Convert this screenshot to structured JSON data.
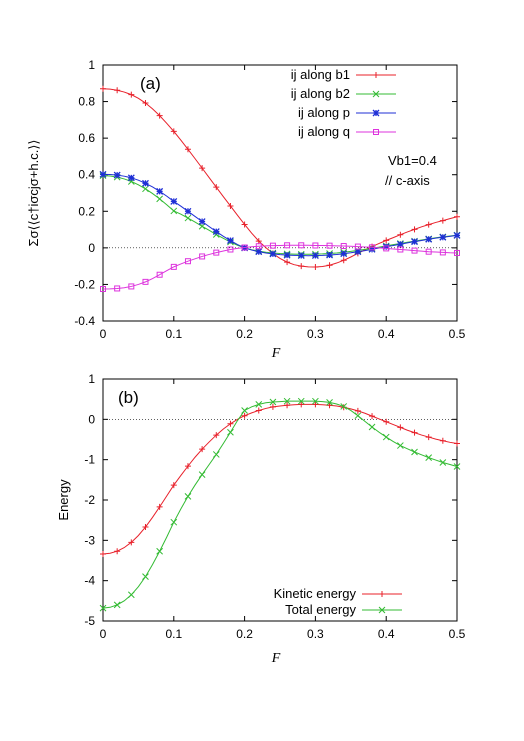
{
  "chart_data": [
    {
      "type": "line",
      "panel_label": "(a)",
      "xlabel": "F",
      "ylabel": "Σσ⟨⟨c†iσcjσ+h.c.⟩⟩",
      "xlim": [
        0,
        0.5
      ],
      "ylim": [
        -0.4,
        1
      ],
      "xticks": [
        "0",
        "0.1",
        "0.2",
        "0.3",
        "0.4",
        "0.5"
      ],
      "yticks": [
        "-0.4",
        "-0.2",
        "0",
        "0.2",
        "0.4",
        "0.6",
        "0.8",
        "1"
      ],
      "zero_line": true,
      "legend_position": "top-right",
      "annotation_line1": "Vb1=0.4",
      "annotation_line2": "// c-axis",
      "series": [
        {
          "name": "ij along b1",
          "color": "#e8202a",
          "marker": "plus",
          "x": [
            0,
            0.01,
            0.02,
            0.03,
            0.04,
            0.05,
            0.06,
            0.07,
            0.08,
            0.09,
            0.1,
            0.11,
            0.12,
            0.13,
            0.14,
            0.15,
            0.16,
            0.17,
            0.18,
            0.19,
            0.2,
            0.21,
            0.22,
            0.23,
            0.24,
            0.25,
            0.26,
            0.27,
            0.28,
            0.29,
            0.3,
            0.31,
            0.32,
            0.33,
            0.34,
            0.35,
            0.36,
            0.37,
            0.38,
            0.39,
            0.4,
            0.41,
            0.42,
            0.43,
            0.44,
            0.45,
            0.46,
            0.47,
            0.48,
            0.49,
            0.5
          ],
          "y": [
            0.87,
            0.868,
            0.862,
            0.852,
            0.838,
            0.818,
            0.792,
            0.76,
            0.723,
            0.681,
            0.637,
            0.589,
            0.539,
            0.488,
            0.436,
            0.384,
            0.332,
            0.28,
            0.229,
            0.178,
            0.128,
            0.08,
            0.037,
            0.001,
            -0.031,
            -0.058,
            -0.078,
            -0.092,
            -0.1,
            -0.104,
            -0.105,
            -0.102,
            -0.095,
            -0.083,
            -0.068,
            -0.05,
            -0.03,
            -0.011,
            0.007,
            0.024,
            0.041,
            0.056,
            0.072,
            0.087,
            0.101,
            0.115,
            0.127,
            0.139,
            0.149,
            0.16,
            0.17
          ]
        },
        {
          "name": "ij along b2",
          "color": "#33bb33",
          "marker": "cross",
          "x": [
            0,
            0.01,
            0.02,
            0.03,
            0.04,
            0.05,
            0.06,
            0.07,
            0.08,
            0.09,
            0.1,
            0.11,
            0.12,
            0.13,
            0.14,
            0.15,
            0.16,
            0.17,
            0.18,
            0.19,
            0.2,
            0.21,
            0.22,
            0.23,
            0.24,
            0.25,
            0.26,
            0.27,
            0.28,
            0.29,
            0.3,
            0.31,
            0.32,
            0.33,
            0.34,
            0.35,
            0.36,
            0.37,
            0.38,
            0.39,
            0.4,
            0.41,
            0.42,
            0.43,
            0.44,
            0.45,
            0.46,
            0.47,
            0.48,
            0.49,
            0.5
          ],
          "y": [
            0.395,
            0.393,
            0.387,
            0.377,
            0.363,
            0.345,
            0.323,
            0.297,
            0.268,
            0.236,
            0.202,
            0.184,
            0.163,
            0.141,
            0.118,
            0.096,
            0.073,
            0.052,
            0.032,
            0.014,
            0.0,
            -0.01,
            -0.018,
            -0.024,
            -0.028,
            -0.031,
            -0.033,
            -0.034,
            -0.035,
            -0.035,
            -0.034,
            -0.033,
            -0.031,
            -0.028,
            -0.024,
            -0.019,
            -0.014,
            -0.008,
            -0.002,
            0.004,
            0.011,
            0.018,
            0.024,
            0.031,
            0.037,
            0.043,
            0.049,
            0.055,
            0.06,
            0.065,
            0.07
          ]
        },
        {
          "name": "ij along p",
          "color": "#1f2fd6",
          "marker": "star",
          "x": [
            0,
            0.01,
            0.02,
            0.03,
            0.04,
            0.05,
            0.06,
            0.07,
            0.08,
            0.09,
            0.1,
            0.11,
            0.12,
            0.13,
            0.14,
            0.15,
            0.16,
            0.17,
            0.18,
            0.19,
            0.2,
            0.21,
            0.22,
            0.23,
            0.24,
            0.25,
            0.26,
            0.27,
            0.28,
            0.29,
            0.3,
            0.31,
            0.32,
            0.33,
            0.34,
            0.35,
            0.36,
            0.37,
            0.38,
            0.39,
            0.4,
            0.41,
            0.42,
            0.43,
            0.44,
            0.45,
            0.46,
            0.47,
            0.48,
            0.49,
            0.5
          ],
          "y": [
            0.402,
            0.401,
            0.398,
            0.392,
            0.383,
            0.37,
            0.353,
            0.333,
            0.309,
            0.283,
            0.254,
            0.228,
            0.2,
            0.172,
            0.144,
            0.116,
            0.089,
            0.063,
            0.04,
            0.018,
            0.0,
            -0.012,
            -0.021,
            -0.028,
            -0.033,
            -0.037,
            -0.04,
            -0.041,
            -0.042,
            -0.043,
            -0.042,
            -0.041,
            -0.039,
            -0.036,
            -0.032,
            -0.027,
            -0.021,
            -0.015,
            -0.008,
            -0.001,
            0.006,
            0.013,
            0.02,
            0.027,
            0.034,
            0.04,
            0.047,
            0.053,
            0.058,
            0.063,
            0.068
          ]
        },
        {
          "name": "ij along q",
          "color": "#dd33dd",
          "marker": "square",
          "x": [
            0,
            0.01,
            0.02,
            0.03,
            0.04,
            0.05,
            0.06,
            0.07,
            0.08,
            0.09,
            0.1,
            0.11,
            0.12,
            0.13,
            0.14,
            0.15,
            0.16,
            0.17,
            0.18,
            0.19,
            0.2,
            0.21,
            0.22,
            0.23,
            0.24,
            0.25,
            0.26,
            0.27,
            0.28,
            0.29,
            0.3,
            0.31,
            0.32,
            0.33,
            0.34,
            0.35,
            0.36,
            0.37,
            0.38,
            0.39,
            0.4,
            0.41,
            0.42,
            0.43,
            0.44,
            0.45,
            0.46,
            0.47,
            0.48,
            0.49,
            0.5
          ],
          "y": [
            -0.225,
            -0.224,
            -0.222,
            -0.218,
            -0.211,
            -0.2,
            -0.186,
            -0.168,
            -0.147,
            -0.125,
            -0.104,
            -0.088,
            -0.073,
            -0.06,
            -0.047,
            -0.036,
            -0.026,
            -0.017,
            -0.009,
            -0.003,
            0.002,
            0.006,
            0.009,
            0.011,
            0.012,
            0.013,
            0.014,
            0.014,
            0.014,
            0.014,
            0.013,
            0.013,
            0.012,
            0.011,
            0.01,
            0.009,
            0.007,
            0.005,
            0.003,
            0.0,
            -0.003,
            -0.006,
            -0.009,
            -0.012,
            -0.015,
            -0.018,
            -0.021,
            -0.023,
            -0.025,
            -0.027,
            -0.028
          ]
        }
      ]
    },
    {
      "type": "line",
      "panel_label": "(b)",
      "xlabel": "F",
      "ylabel": "Energy",
      "xlim": [
        0,
        0.5
      ],
      "ylim": [
        -5,
        1
      ],
      "xticks": [
        "0",
        "0.1",
        "0.2",
        "0.3",
        "0.4",
        "0.5"
      ],
      "yticks": [
        "-5",
        "-4",
        "-3",
        "-2",
        "-1",
        "0",
        "1"
      ],
      "zero_line": true,
      "legend_position": "bottom-right",
      "series": [
        {
          "name": "Kinetic energy",
          "color": "#e8202a",
          "marker": "plus",
          "x": [
            0,
            0.01,
            0.02,
            0.03,
            0.04,
            0.05,
            0.06,
            0.07,
            0.08,
            0.09,
            0.1,
            0.11,
            0.12,
            0.13,
            0.14,
            0.15,
            0.16,
            0.17,
            0.18,
            0.19,
            0.2,
            0.21,
            0.22,
            0.23,
            0.24,
            0.25,
            0.26,
            0.27,
            0.28,
            0.29,
            0.3,
            0.31,
            0.32,
            0.33,
            0.34,
            0.35,
            0.36,
            0.37,
            0.38,
            0.39,
            0.4,
            0.41,
            0.42,
            0.43,
            0.44,
            0.45,
            0.46,
            0.47,
            0.48,
            0.49,
            0.5
          ],
          "y": [
            -3.34,
            -3.32,
            -3.27,
            -3.18,
            -3.05,
            -2.88,
            -2.67,
            -2.43,
            -2.17,
            -1.9,
            -1.63,
            -1.39,
            -1.16,
            -0.94,
            -0.74,
            -0.56,
            -0.39,
            -0.24,
            -0.11,
            0.0,
            0.09,
            0.16,
            0.22,
            0.27,
            0.31,
            0.33,
            0.35,
            0.36,
            0.37,
            0.37,
            0.37,
            0.36,
            0.35,
            0.33,
            0.3,
            0.26,
            0.21,
            0.15,
            0.08,
            0.01,
            -0.06,
            -0.13,
            -0.2,
            -0.27,
            -0.33,
            -0.39,
            -0.44,
            -0.49,
            -0.53,
            -0.57,
            -0.6
          ]
        },
        {
          "name": "Total energy",
          "color": "#33bb33",
          "marker": "cross",
          "x": [
            0,
            0.01,
            0.02,
            0.03,
            0.04,
            0.05,
            0.06,
            0.07,
            0.08,
            0.09,
            0.1,
            0.11,
            0.12,
            0.13,
            0.14,
            0.15,
            0.16,
            0.17,
            0.18,
            0.19,
            0.2,
            0.21,
            0.22,
            0.23,
            0.24,
            0.25,
            0.26,
            0.27,
            0.28,
            0.29,
            0.3,
            0.31,
            0.32,
            0.33,
            0.34,
            0.35,
            0.36,
            0.37,
            0.38,
            0.39,
            0.4,
            0.41,
            0.42,
            0.43,
            0.44,
            0.45,
            0.46,
            0.47,
            0.48,
            0.49,
            0.5
          ],
          "y": [
            -4.68,
            -4.66,
            -4.6,
            -4.5,
            -4.35,
            -4.15,
            -3.9,
            -3.6,
            -3.27,
            -2.92,
            -2.55,
            -2.22,
            -1.91,
            -1.63,
            -1.37,
            -1.12,
            -0.87,
            -0.6,
            -0.32,
            -0.03,
            0.22,
            0.31,
            0.37,
            0.41,
            0.43,
            0.44,
            0.45,
            0.45,
            0.45,
            0.45,
            0.45,
            0.44,
            0.42,
            0.38,
            0.32,
            0.22,
            0.09,
            -0.05,
            -0.19,
            -0.32,
            -0.44,
            -0.55,
            -0.65,
            -0.73,
            -0.81,
            -0.88,
            -0.95,
            -1.01,
            -1.07,
            -1.12,
            -1.17
          ]
        }
      ]
    }
  ]
}
